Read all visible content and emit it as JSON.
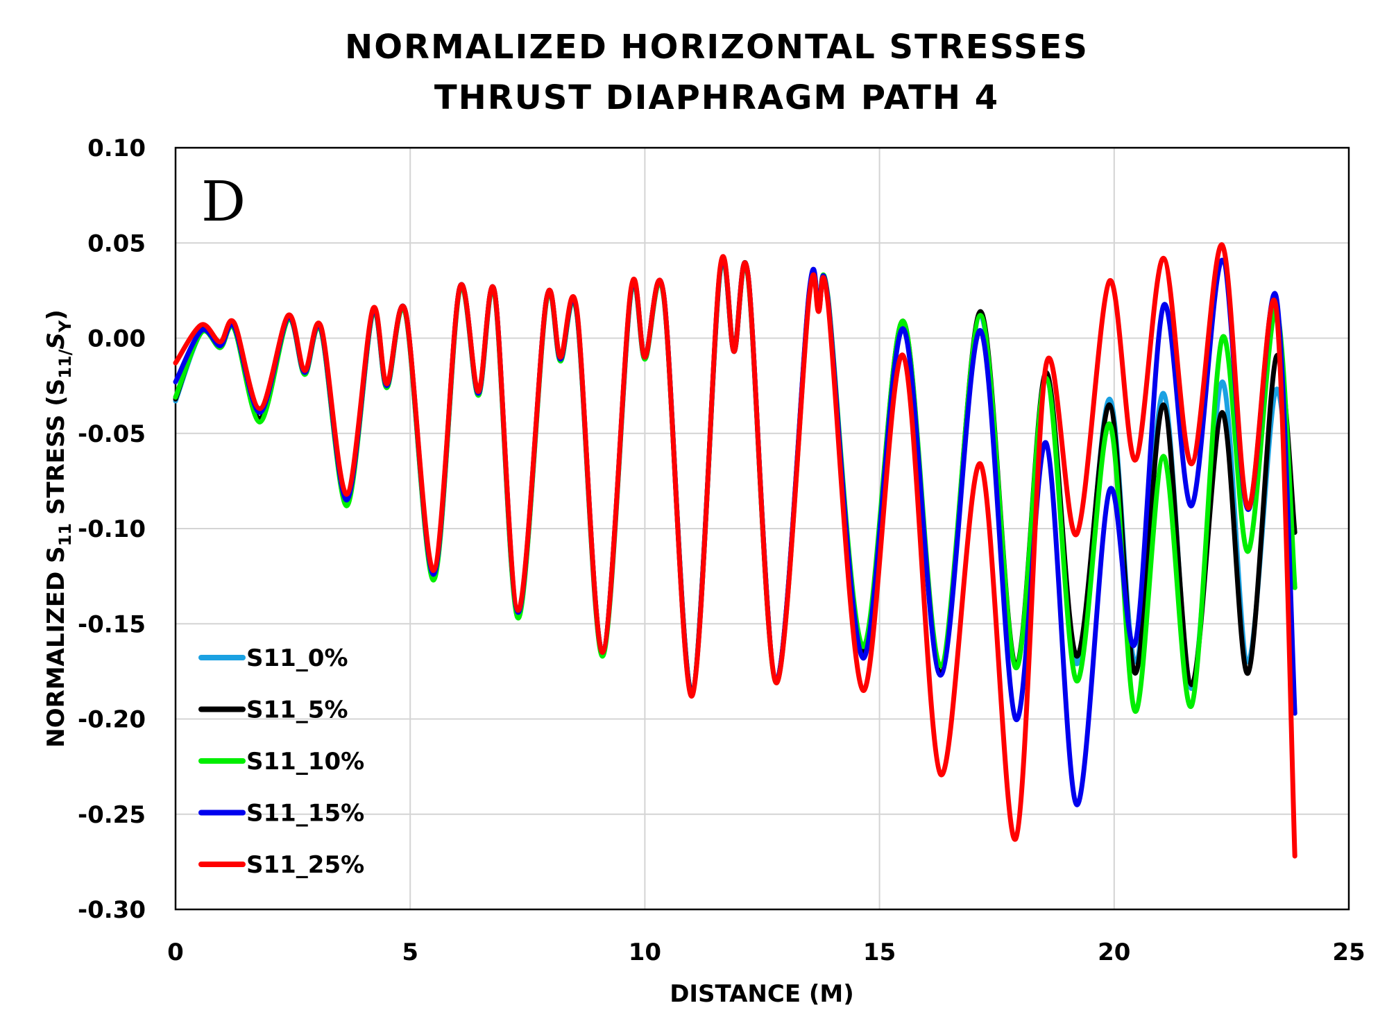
{
  "chart_data": {
    "type": "line",
    "title_line1": "NORMALIZED HORIZONTAL STRESSES",
    "title_line2": "THRUST DIAPHRAGM PATH 4",
    "panel_label": "D",
    "xlabel": "DISTANCE (M)",
    "ylabel": {
      "prefix": "NORMALIZED S",
      "sub1": "11",
      "mid": " STRESS (S",
      "sub2": "11/",
      "s": "S",
      "sub3": "Y",
      "suffix": ")"
    },
    "xlim": [
      0,
      25
    ],
    "ylim": [
      -0.3,
      0.1
    ],
    "xticks": [
      "0",
      "5",
      "10",
      "15",
      "20",
      "25"
    ],
    "xtick_values": [
      0,
      5,
      10,
      15,
      20,
      25
    ],
    "yticks": [
      "0.10",
      "0.05",
      "0.00",
      "-0.05",
      "-0.10",
      "-0.15",
      "-0.20",
      "-0.25",
      "-0.30"
    ],
    "ytick_values": [
      0.1,
      0.05,
      0.0,
      -0.05,
      -0.1,
      -0.15,
      -0.2,
      -0.25,
      -0.3
    ],
    "grid": true,
    "legend_position": "bottom-left",
    "series": [
      {
        "name": "S11_0%",
        "color": "#1ba1e2",
        "x": [
          0,
          0.55,
          0.95,
          1.25,
          1.8,
          2.4,
          2.75,
          3.1,
          3.65,
          4.2,
          4.5,
          4.9,
          5.5,
          6.05,
          6.45,
          6.8,
          7.3,
          7.9,
          8.2,
          8.55,
          9.1,
          9.7,
          10.0,
          10.4,
          11.0,
          11.6,
          11.9,
          12.2,
          12.8,
          13.5,
          13.7,
          13.9,
          14.65,
          15.5,
          16.3,
          17.15,
          17.9,
          18.55,
          19.2,
          19.9,
          20.45,
          21.05,
          21.65,
          22.3,
          22.85,
          23.45,
          23.85
        ],
        "values": [
          -0.033,
          0.003,
          -0.005,
          0.005,
          -0.043,
          0.01,
          -0.019,
          0.004,
          -0.087,
          0.013,
          -0.026,
          0.013,
          -0.126,
          0.025,
          -0.03,
          0.023,
          -0.146,
          0.019,
          -0.012,
          0.013,
          -0.166,
          0.023,
          -0.011,
          0.022,
          -0.186,
          0.034,
          -0.007,
          0.032,
          -0.18,
          0.023,
          0.015,
          0.02,
          -0.166,
          0.008,
          -0.176,
          0.012,
          -0.173,
          -0.02,
          -0.171,
          -0.032,
          -0.17,
          -0.029,
          -0.184,
          -0.023,
          -0.17,
          -0.027,
          -0.131
        ]
      },
      {
        "name": "S11_5%",
        "color": "#000000",
        "x": [
          0,
          0.55,
          0.95,
          1.25,
          1.8,
          2.4,
          2.75,
          3.1,
          3.65,
          4.2,
          4.5,
          4.9,
          5.5,
          6.05,
          6.45,
          6.8,
          7.3,
          7.9,
          8.2,
          8.55,
          9.1,
          9.7,
          10.0,
          10.4,
          11.0,
          11.6,
          11.9,
          12.2,
          12.8,
          13.5,
          13.7,
          13.9,
          14.65,
          15.5,
          16.3,
          17.15,
          17.9,
          18.55,
          19.2,
          19.9,
          20.45,
          21.05,
          21.65,
          22.3,
          22.85,
          23.45,
          23.85
        ],
        "values": [
          -0.032,
          0.004,
          -0.004,
          0.006,
          -0.042,
          0.011,
          -0.018,
          0.005,
          -0.086,
          0.014,
          -0.025,
          0.014,
          -0.125,
          0.026,
          -0.029,
          0.024,
          -0.145,
          0.02,
          -0.011,
          0.014,
          -0.165,
          0.024,
          -0.01,
          0.023,
          -0.186,
          0.035,
          -0.006,
          0.033,
          -0.18,
          0.023,
          0.015,
          0.021,
          -0.165,
          0.009,
          -0.176,
          0.014,
          -0.172,
          -0.018,
          -0.167,
          -0.035,
          -0.176,
          -0.035,
          -0.182,
          -0.039,
          -0.176,
          -0.01,
          -0.102
        ]
      },
      {
        "name": "S11_10%",
        "color": "#00ee00",
        "x": [
          0,
          0.55,
          0.95,
          1.25,
          1.8,
          2.4,
          2.75,
          3.1,
          3.65,
          4.2,
          4.5,
          4.9,
          5.5,
          6.05,
          6.45,
          6.8,
          7.3,
          7.9,
          8.2,
          8.55,
          9.1,
          9.7,
          10.0,
          10.4,
          11.0,
          11.6,
          11.9,
          12.2,
          12.8,
          13.5,
          13.7,
          13.9,
          14.65,
          15.5,
          16.3,
          17.15,
          17.9,
          18.55,
          19.2,
          19.9,
          20.45,
          21.05,
          21.65,
          22.3,
          22.85,
          23.45,
          23.85
        ],
        "values": [
          -0.031,
          0.003,
          -0.005,
          0.005,
          -0.044,
          0.01,
          -0.019,
          0.004,
          -0.088,
          0.013,
          -0.026,
          0.013,
          -0.127,
          0.025,
          -0.03,
          0.023,
          -0.147,
          0.019,
          -0.012,
          0.013,
          -0.167,
          0.023,
          -0.011,
          0.022,
          -0.187,
          0.034,
          -0.007,
          0.032,
          -0.181,
          0.022,
          0.016,
          0.022,
          -0.162,
          0.009,
          -0.172,
          0.012,
          -0.173,
          -0.021,
          -0.18,
          -0.045,
          -0.196,
          -0.062,
          -0.193,
          0.0,
          -0.112,
          0.015,
          -0.131
        ]
      },
      {
        "name": "S11_15%",
        "color": "#0000ee",
        "x": [
          0,
          0.55,
          0.95,
          1.25,
          1.8,
          2.4,
          2.75,
          3.1,
          3.65,
          4.2,
          4.5,
          4.9,
          5.5,
          6.05,
          6.45,
          6.8,
          7.3,
          7.9,
          8.2,
          8.55,
          9.1,
          9.7,
          10.0,
          10.4,
          11.0,
          11.6,
          11.9,
          12.2,
          12.8,
          13.5,
          13.7,
          13.9,
          14.65,
          15.5,
          16.3,
          17.15,
          17.9,
          18.55,
          19.2,
          19.9,
          20.45,
          21.05,
          21.65,
          22.3,
          22.85,
          23.45,
          23.85
        ],
        "values": [
          -0.023,
          0.004,
          -0.004,
          0.006,
          -0.039,
          0.011,
          -0.018,
          0.005,
          -0.085,
          0.014,
          -0.025,
          0.014,
          -0.124,
          0.026,
          -0.029,
          0.024,
          -0.144,
          0.02,
          -0.011,
          0.014,
          -0.165,
          0.024,
          -0.01,
          0.023,
          -0.187,
          0.035,
          -0.007,
          0.033,
          -0.18,
          0.024,
          0.016,
          0.021,
          -0.168,
          0.005,
          -0.177,
          0.004,
          -0.2,
          -0.055,
          -0.245,
          -0.08,
          -0.16,
          0.017,
          -0.088,
          0.041,
          -0.09,
          0.022,
          -0.197
        ]
      },
      {
        "name": "S11_25%",
        "color": "#ff0000",
        "x": [
          0,
          0.55,
          0.95,
          1.25,
          1.8,
          2.4,
          2.75,
          3.1,
          3.65,
          4.2,
          4.5,
          4.9,
          5.5,
          6.05,
          6.45,
          6.8,
          7.3,
          7.9,
          8.2,
          8.55,
          9.1,
          9.7,
          10.0,
          10.4,
          11.0,
          11.6,
          11.9,
          12.2,
          12.8,
          13.5,
          13.7,
          13.9,
          14.65,
          15.5,
          16.3,
          17.15,
          17.9,
          18.55,
          19.2,
          19.9,
          20.45,
          21.05,
          21.65,
          22.3,
          22.85,
          23.45,
          23.85
        ],
        "values": [
          -0.013,
          0.007,
          -0.002,
          0.008,
          -0.037,
          0.012,
          -0.017,
          0.006,
          -0.082,
          0.015,
          -0.024,
          0.014,
          -0.122,
          0.026,
          -0.028,
          0.024,
          -0.143,
          0.02,
          -0.01,
          0.015,
          -0.165,
          0.025,
          -0.01,
          0.023,
          -0.188,
          0.036,
          -0.007,
          0.033,
          -0.181,
          0.021,
          0.014,
          0.019,
          -0.185,
          -0.009,
          -0.229,
          -0.066,
          -0.263,
          -0.014,
          -0.103,
          0.03,
          -0.064,
          0.042,
          -0.066,
          0.049,
          -0.089,
          0.016,
          -0.272
        ]
      }
    ]
  }
}
